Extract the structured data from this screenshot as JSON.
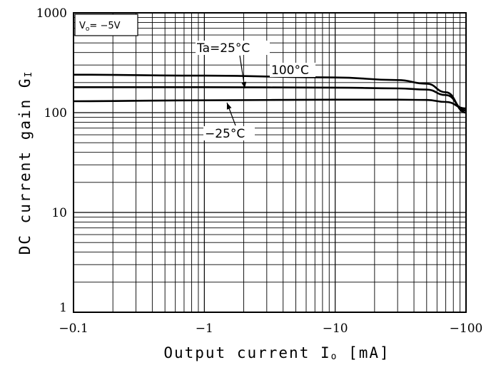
{
  "chart_data": {
    "type": "line",
    "condition": "Vo=−5V",
    "condition_parts": {
      "v": "V",
      "sub": "o",
      "rest": "= −5V"
    },
    "xlabel_parts": {
      "pre": "Output current I",
      "sub": "o",
      "post": " [mA]"
    },
    "ylabel_parts": {
      "pre": "DC current gain G",
      "sub": "I",
      "post": ""
    },
    "x_scale": "log",
    "y_scale": "log",
    "x_ticks": [
      "−0.1",
      "−1",
      "−10",
      "−100"
    ],
    "y_ticks": [
      "1",
      "10",
      "100",
      "1000"
    ],
    "xlim": [
      -0.1,
      -100
    ],
    "ylim": [
      1,
      1000
    ],
    "grid": true,
    "series": [
      {
        "name": "100°C",
        "x": [
          -0.1,
          -1,
          -10,
          -30,
          -50,
          -70,
          -100
        ],
        "y": [
          240,
          235,
          225,
          212,
          195,
          160,
          100
        ]
      },
      {
        "name": "Ta=25°C",
        "x": [
          -0.1,
          -1,
          -10,
          -30,
          -50,
          -70,
          -100
        ],
        "y": [
          180,
          180,
          178,
          175,
          170,
          150,
          105
        ]
      },
      {
        "name": "−25°C",
        "x": [
          -0.1,
          -1,
          -10,
          -30,
          -50,
          -70,
          -100
        ],
        "y": [
          130,
          133,
          135,
          135,
          134,
          128,
          110
        ]
      }
    ],
    "annotations": [
      "Ta=25°C",
      "100°C",
      "−25°C"
    ]
  }
}
